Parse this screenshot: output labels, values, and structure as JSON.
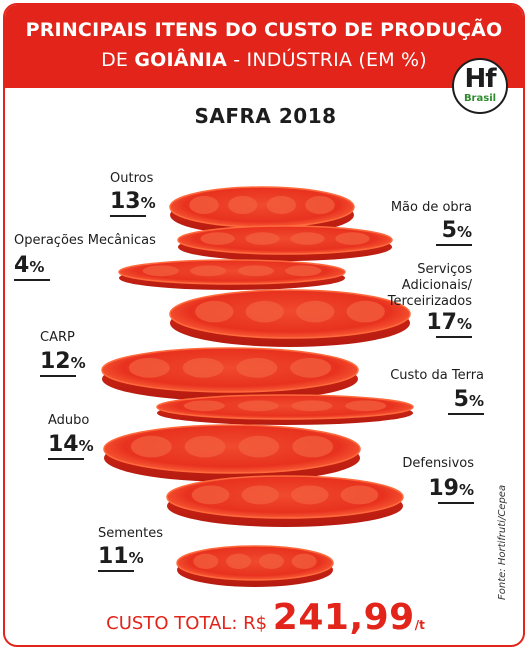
{
  "header": {
    "line1": "PRINCIPAIS ITENS DO CUSTO DE PRODUÇÃO",
    "line2_prefix": "DE ",
    "line2_city": "GOIÂNIA",
    "line2_suffix": " - INDÚSTRIA (EM %)"
  },
  "logo": {
    "hf": "Hf",
    "brasil": "Brasil",
    "icon": "hf-brasil-logo"
  },
  "chart_data": {
    "type": "bar",
    "title": "SAFRA 2018",
    "unit": "%",
    "categories": [
      "Outros",
      "Mão de obra",
      "Operações Mecânicas",
      "Serviços Adicionais/ Terceirizados",
      "CARP",
      "Custo da Terra",
      "Adubo",
      "Defensivos",
      "Sementes"
    ],
    "values": [
      13,
      5,
      4,
      17,
      12,
      5,
      14,
      19,
      11
    ],
    "value_labels": [
      "13",
      "5",
      "4",
      "17",
      "12",
      "5",
      "14",
      "19",
      "11"
    ],
    "colors": {
      "flesh": "#e8321f",
      "rim": "#ff6a3d",
      "shadow": "#b51a10"
    }
  },
  "source": "Fonte: Hortifruti/Cepea",
  "total": {
    "label": "CUSTO TOTAL: ",
    "currency": "R$ ",
    "amount": "241,99",
    "unit": "/t"
  },
  "colors": {
    "brand": "#e2241a",
    "text": "#1d1d1d"
  }
}
